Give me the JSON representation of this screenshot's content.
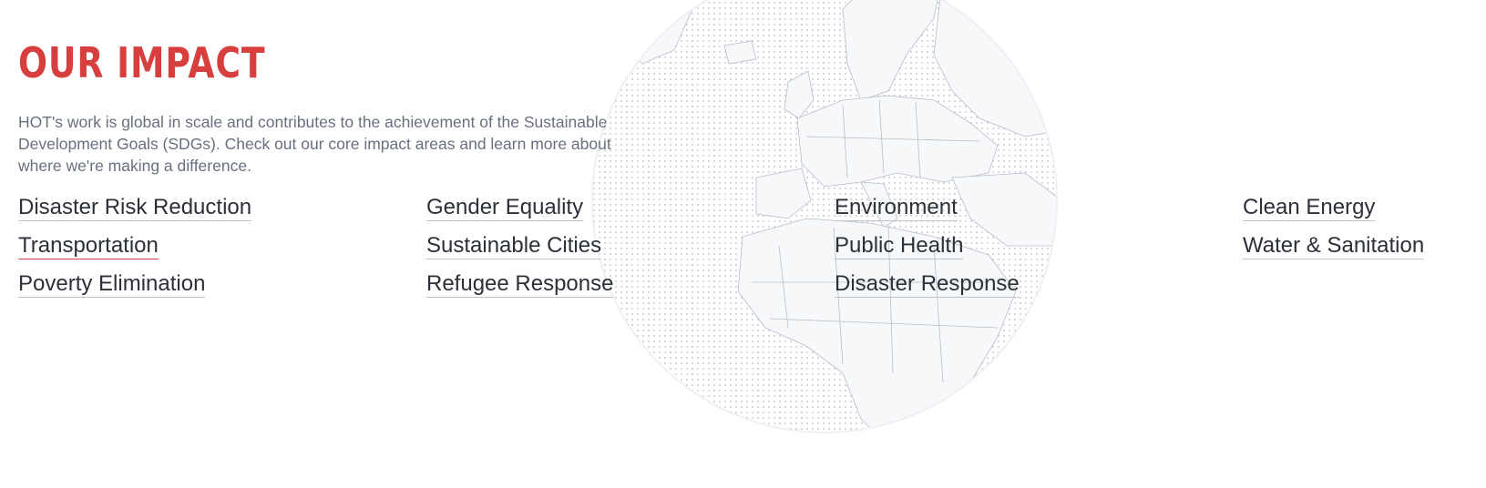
{
  "section": {
    "title": "OUR IMPACT",
    "intro": "HOT's work is global in scale and contributes to the achievement of the Sustainable Development Goals (SDGs). Check out our core impact areas and learn more about where we're making a difference."
  },
  "impact_areas": [
    {
      "label": "Disaster Risk Reduction"
    },
    {
      "label": "Transportation"
    },
    {
      "label": "Poverty Elimination"
    },
    {
      "label": "Gender Equality"
    },
    {
      "label": "Sustainable Cities"
    },
    {
      "label": "Refugee Response"
    },
    {
      "label": "Environment"
    },
    {
      "label": "Public Health"
    },
    {
      "label": "Disaster Response"
    },
    {
      "label": "Clean Energy"
    },
    {
      "label": "Water & Sanitation"
    }
  ],
  "colors": {
    "accent": "#d73f3f",
    "body_text": "#68707f",
    "link_text": "#2c3038",
    "globe_fill": "#f4f5f8",
    "globe_dots": "#c9ccd8",
    "country_lines": "#b8bccb"
  },
  "icons": {
    "background": "world-globe-icon"
  }
}
